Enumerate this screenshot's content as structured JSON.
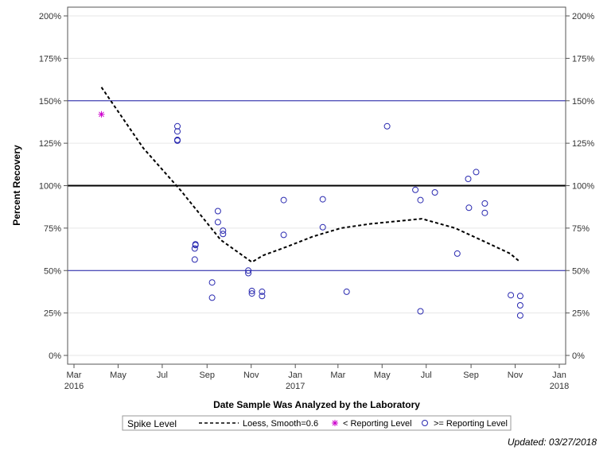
{
  "chart_data": {
    "type": "scatter",
    "ylabel": "Percent Recovery",
    "xlabel": "Date Sample Was Analyzed by the Laboratory",
    "ylim": [
      0,
      200
    ],
    "xlim": [
      "2016-03-01",
      "2018-01-01"
    ],
    "y_ticks": [
      "0%",
      "25%",
      "50%",
      "75%",
      "100%",
      "125%",
      "150%",
      "175%",
      "200%"
    ],
    "x_ticks": [
      {
        "date": "2016-03-01",
        "label": "Mar",
        "year": "2016"
      },
      {
        "date": "2016-05-01",
        "label": "May",
        "year": ""
      },
      {
        "date": "2016-07-01",
        "label": "Jul",
        "year": ""
      },
      {
        "date": "2016-09-01",
        "label": "Sep",
        "year": ""
      },
      {
        "date": "2016-11-01",
        "label": "Nov",
        "year": ""
      },
      {
        "date": "2017-01-01",
        "label": "Jan",
        "year": "2017"
      },
      {
        "date": "2017-03-01",
        "label": "Mar",
        "year": ""
      },
      {
        "date": "2017-05-01",
        "label": "May",
        "year": ""
      },
      {
        "date": "2017-07-01",
        "label": "Jul",
        "year": ""
      },
      {
        "date": "2017-09-01",
        "label": "Sep",
        "year": ""
      },
      {
        "date": "2017-11-01",
        "label": "Nov",
        "year": ""
      },
      {
        "date": "2018-01-01",
        "label": "Jan",
        "year": "2018"
      }
    ],
    "grid": true,
    "legend_position": "bottom",
    "reference_lines": [
      {
        "y": 50,
        "color": "#1a1aa6",
        "style": "thin"
      },
      {
        "y": 100,
        "color": "#000000",
        "style": "thick"
      },
      {
        "y": 150,
        "color": "#1a1aa6",
        "style": "thin"
      }
    ],
    "series": [
      {
        "name": "< Reporting Level",
        "marker": "star",
        "color": "#cc00cc",
        "points": [
          {
            "x": "2016-04-08",
            "y": 142
          }
        ]
      },
      {
        "name": ">= Reporting Level",
        "marker": "circle",
        "color": "#2a2ab0",
        "points": [
          {
            "x": "2016-07-22",
            "y": 135
          },
          {
            "x": "2016-07-22",
            "y": 132
          },
          {
            "x": "2016-07-22",
            "y": 127
          },
          {
            "x": "2016-07-22",
            "y": 126.5
          },
          {
            "x": "2016-08-16",
            "y": 65.5
          },
          {
            "x": "2016-08-16",
            "y": 65
          },
          {
            "x": "2016-08-15",
            "y": 63
          },
          {
            "x": "2016-08-15",
            "y": 56.5
          },
          {
            "x": "2016-09-08",
            "y": 43
          },
          {
            "x": "2016-09-08",
            "y": 34
          },
          {
            "x": "2016-09-16",
            "y": 85
          },
          {
            "x": "2016-09-16",
            "y": 78.5
          },
          {
            "x": "2016-09-23",
            "y": 73.5
          },
          {
            "x": "2016-09-23",
            "y": 71.5
          },
          {
            "x": "2016-10-28",
            "y": 50
          },
          {
            "x": "2016-10-28",
            "y": 48.5
          },
          {
            "x": "2016-11-02",
            "y": 38
          },
          {
            "x": "2016-11-02",
            "y": 36.5
          },
          {
            "x": "2016-11-16",
            "y": 37.5
          },
          {
            "x": "2016-11-16",
            "y": 35
          },
          {
            "x": "2016-12-16",
            "y": 91.5
          },
          {
            "x": "2016-12-16",
            "y": 71
          },
          {
            "x": "2017-02-08",
            "y": 92
          },
          {
            "x": "2017-02-08",
            "y": 75.5
          },
          {
            "x": "2017-03-13",
            "y": 37.5
          },
          {
            "x": "2017-05-08",
            "y": 135
          },
          {
            "x": "2017-06-16",
            "y": 97.5
          },
          {
            "x": "2017-06-23",
            "y": 91.5
          },
          {
            "x": "2017-06-23",
            "y": 26
          },
          {
            "x": "2017-07-13",
            "y": 96
          },
          {
            "x": "2017-08-13",
            "y": 60
          },
          {
            "x": "2017-08-28",
            "y": 104
          },
          {
            "x": "2017-08-29",
            "y": 87
          },
          {
            "x": "2017-09-08",
            "y": 108
          },
          {
            "x": "2017-09-20",
            "y": 89.5
          },
          {
            "x": "2017-09-20",
            "y": 84
          },
          {
            "x": "2017-10-26",
            "y": 35.5
          },
          {
            "x": "2017-11-08",
            "y": 35
          },
          {
            "x": "2017-11-08",
            "y": 29.5
          },
          {
            "x": "2017-11-08",
            "y": 23.5
          }
        ]
      }
    ],
    "loess": {
      "name": "Loess, Smooth=0.6",
      "color": "#000000",
      "style": "dashed",
      "points": [
        {
          "x": "2016-04-08",
          "y": 158
        },
        {
          "x": "2016-06-05",
          "y": 122
        },
        {
          "x": "2016-07-27",
          "y": 97
        },
        {
          "x": "2016-09-20",
          "y": 68
        },
        {
          "x": "2016-11-02",
          "y": 55
        },
        {
          "x": "2016-11-18",
          "y": 59
        },
        {
          "x": "2016-12-20",
          "y": 64
        },
        {
          "x": "2017-01-25",
          "y": 70
        },
        {
          "x": "2017-03-05",
          "y": 75
        },
        {
          "x": "2017-04-15",
          "y": 77.5
        },
        {
          "x": "2017-06-25",
          "y": 80.5
        },
        {
          "x": "2017-08-10",
          "y": 75
        },
        {
          "x": "2017-09-20",
          "y": 67
        },
        {
          "x": "2017-10-25",
          "y": 60
        },
        {
          "x": "2017-11-08",
          "y": 55
        }
      ]
    }
  },
  "legend": {
    "title": "Spike Level",
    "loess_label": "Loess, Smooth=0.6",
    "below_label": "< Reporting Level",
    "above_label": ">= Reporting Level"
  },
  "footnote": "Updated: 03/27/2018"
}
